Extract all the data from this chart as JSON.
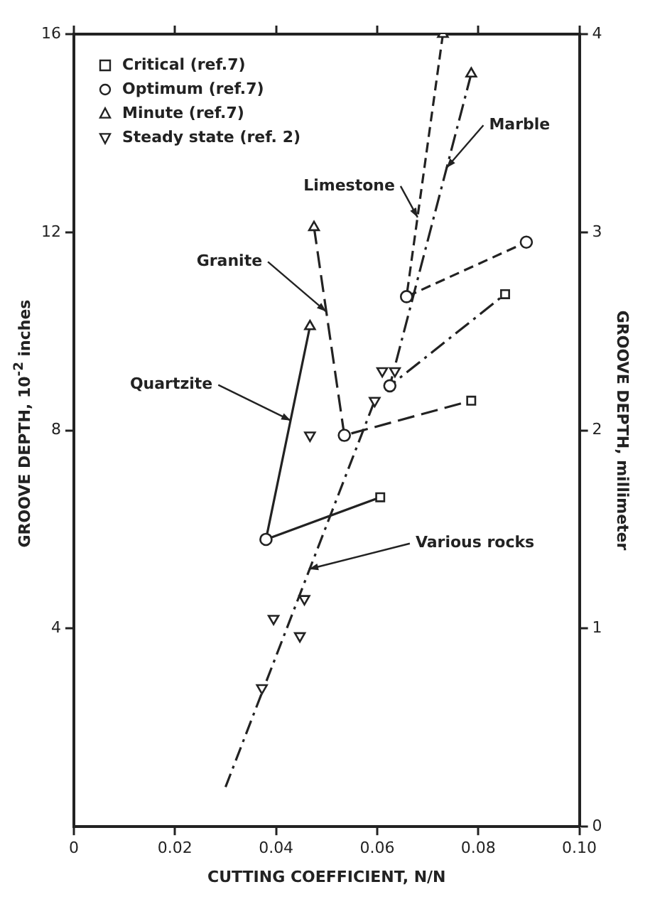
{
  "chart_data": {
    "type": "scatter",
    "xlabel": "CUTTING COEFFICIENT, N/N",
    "ylabel": "GROOVE DEPTH, 10$^{-2}$ inches",
    "y2label": "GROOVE DEPTH, millimeter",
    "xlim": [
      0,
      0.1
    ],
    "xticks": [
      0,
      0.02,
      0.04,
      0.06,
      0.08,
      {
        "value": 0.1,
        "label": "0.10"
      }
    ],
    "ylim": [
      0,
      16
    ],
    "yticks": [
      4,
      8,
      12,
      16
    ],
    "y2lim": [
      0,
      4
    ],
    "y2ticks": [
      0,
      1,
      2,
      3,
      4
    ],
    "grid": false,
    "legend": "top left",
    "series": [
      {
        "name": "Critical (ref.7)",
        "type": "scatter",
        "marker": "square",
        "color": "#222222",
        "x": [
          0.0606,
          0.0786,
          0.0853
        ],
        "values": [
          6.65,
          8.6,
          10.75
        ]
      },
      {
        "name": "Optimum (ref.7)",
        "type": "scatter",
        "marker": "circle",
        "color": "#222222",
        "x": [
          0.038,
          0.0535,
          0.0625,
          0.0658,
          0.0895
        ],
        "values": [
          5.8,
          7.9,
          8.9,
          10.7,
          11.8
        ]
      },
      {
        "name": "Minute (ref.7)",
        "type": "scatter",
        "marker": "triangle",
        "color": "#222222",
        "x": [
          0.0467,
          0.0475,
          0.073,
          0.0786
        ],
        "values": [
          10.1,
          12.1,
          16,
          15.2
        ]
      },
      {
        "name": "Steady state (ref. 2)",
        "type": "scatter",
        "marker": "triangle-down",
        "color": "#222222",
        "x": [
          0.0467,
          0.0395,
          0.0447,
          0.0456,
          0.0372,
          0.061,
          0.0635,
          0.0595
        ],
        "values": [
          7.9,
          4.2,
          3.85,
          4.6,
          2.8,
          9.2,
          9.2,
          8.6
        ]
      },
      {
        "type": "line",
        "line_style": "solid",
        "marker": "none",
        "color": "#222222",
        "x": [
          0.0467,
          0.038,
          0.0606
        ],
        "values": [
          10.1,
          5.8,
          6.65
        ]
      },
      {
        "type": "line",
        "line_style": "dashed",
        "marker": "none",
        "color": "#222222",
        "x": [
          0.0475,
          0.0535,
          0.0786
        ],
        "values": [
          12.1,
          7.9,
          8.6
        ]
      },
      {
        "type": "line",
        "line_style": "dashed",
        "marker": "none",
        "color": "#222222",
        "x": [
          0.073,
          0.0658,
          0.0895
        ],
        "values": [
          16,
          10.7,
          11.8
        ]
      },
      {
        "type": "line",
        "line_style": "dashed",
        "marker": "none",
        "color": "#222222",
        "x": [
          0.0786,
          0.0625,
          0.0853
        ],
        "values": [
          15.2,
          8.9,
          10.75
        ]
      },
      {
        "type": "line",
        "line_style": "dashed",
        "marker": "none",
        "color": "#222222",
        "x": [
          0.03,
          0.0595
        ],
        "values": [
          0.8,
          8.6
        ]
      }
    ],
    "annotations": [
      {
        "text": "Granite",
        "x": 0.0499,
        "y": 10.4
      },
      {
        "text": "Quartzite",
        "x": 0.0429,
        "y": 8.2
      },
      {
        "text": "Limestone",
        "x": 0.068,
        "y": 12.3
      },
      {
        "text": "Marble",
        "x": 0.0737,
        "y": 13.3
      },
      {
        "text": "Various rocks",
        "x": 0.0465,
        "y": 5.2
      }
    ]
  }
}
